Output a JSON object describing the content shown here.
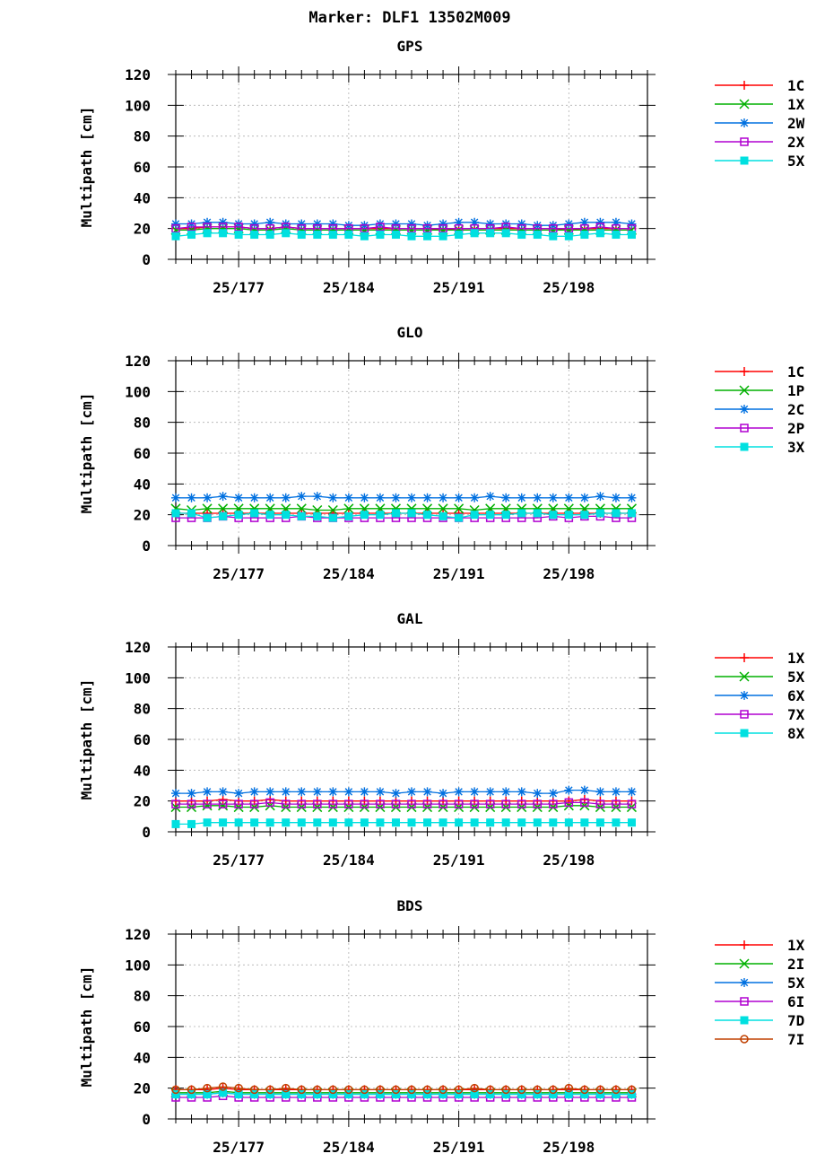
{
  "header": {
    "title": "Marker: DLF1 13502M009"
  },
  "chart_data": [
    {
      "type": "line",
      "title": "GPS",
      "ylabel": "Multipath [cm]",
      "ylim": [
        0,
        120
      ],
      "yticks": [
        0,
        20,
        40,
        60,
        80,
        100,
        120
      ],
      "xlim": [
        173,
        203
      ],
      "xticks": [
        177,
        184,
        191,
        198
      ],
      "xtick_labels": [
        "25/177",
        "25/184",
        "25/191",
        "25/198"
      ],
      "grid": true,
      "legend_position": "right",
      "x": [
        173,
        174,
        175,
        176,
        177,
        178,
        179,
        180,
        181,
        182,
        183,
        184,
        185,
        186,
        187,
        188,
        189,
        190,
        191,
        192,
        193,
        194,
        195,
        196,
        197,
        198,
        199,
        200,
        201,
        202
      ],
      "series": [
        {
          "name": "1C",
          "color": "#ff0000",
          "marker": "plus",
          "values": [
            20,
            20,
            21,
            21,
            21,
            20,
            20,
            21,
            20,
            20,
            20,
            20,
            20,
            20,
            20,
            20,
            20,
            19,
            20,
            20,
            20,
            20,
            20,
            20,
            20,
            19,
            20,
            20,
            20,
            20
          ]
        },
        {
          "name": "1X",
          "color": "#00b000",
          "marker": "x",
          "values": [
            19,
            19,
            20,
            20,
            20,
            19,
            19,
            20,
            19,
            19,
            19,
            19,
            19,
            19,
            19,
            19,
            19,
            19,
            19,
            19,
            19,
            19,
            19,
            19,
            19,
            19,
            19,
            19,
            19,
            19
          ]
        },
        {
          "name": "2W",
          "color": "#0070e0",
          "marker": "star",
          "values": [
            23,
            23,
            24,
            24,
            23,
            23,
            24,
            23,
            23,
            23,
            23,
            22,
            22,
            23,
            23,
            23,
            22,
            23,
            24,
            24,
            23,
            23,
            23,
            22,
            22,
            23,
            24,
            24,
            24,
            23
          ]
        },
        {
          "name": "2X",
          "color": "#b000d0",
          "marker": "square",
          "values": [
            20,
            21,
            21,
            21,
            21,
            20,
            20,
            21,
            20,
            20,
            20,
            20,
            20,
            21,
            20,
            20,
            20,
            20,
            20,
            20,
            20,
            21,
            20,
            20,
            20,
            20,
            20,
            21,
            20,
            20
          ]
        },
        {
          "name": "5X",
          "color": "#00e0e0",
          "marker": "filled-square",
          "values": [
            15,
            16,
            17,
            17,
            16,
            16,
            16,
            17,
            16,
            16,
            16,
            16,
            15,
            16,
            16,
            15,
            15,
            15,
            16,
            17,
            17,
            17,
            16,
            16,
            15,
            15,
            16,
            17,
            16,
            16
          ]
        }
      ]
    },
    {
      "type": "line",
      "title": "GLO",
      "ylabel": "Multipath [cm]",
      "ylim": [
        0,
        120
      ],
      "yticks": [
        0,
        20,
        40,
        60,
        80,
        100,
        120
      ],
      "xlim": [
        173,
        203
      ],
      "xticks": [
        177,
        184,
        191,
        198
      ],
      "xtick_labels": [
        "25/177",
        "25/184",
        "25/191",
        "25/198"
      ],
      "grid": true,
      "legend_position": "right",
      "x": [
        173,
        174,
        175,
        176,
        177,
        178,
        179,
        180,
        181,
        182,
        183,
        184,
        185,
        186,
        187,
        188,
        189,
        190,
        191,
        192,
        193,
        194,
        195,
        196,
        197,
        198,
        199,
        200,
        201,
        202
      ],
      "series": [
        {
          "name": "1C",
          "color": "#ff0000",
          "marker": "plus",
          "values": [
            21,
            21,
            21,
            21,
            21,
            21,
            21,
            21,
            21,
            21,
            21,
            21,
            21,
            21,
            21,
            21,
            21,
            21,
            21,
            21,
            21,
            21,
            21,
            21,
            21,
            21,
            21,
            21,
            21,
            21
          ]
        },
        {
          "name": "1P",
          "color": "#00b000",
          "marker": "x",
          "values": [
            24,
            23,
            24,
            24,
            24,
            24,
            24,
            24,
            24,
            23,
            23,
            24,
            24,
            24,
            24,
            24,
            24,
            24,
            24,
            23,
            24,
            24,
            24,
            24,
            24,
            24,
            24,
            24,
            24,
            24
          ]
        },
        {
          "name": "2C",
          "color": "#0070e0",
          "marker": "star",
          "values": [
            31,
            31,
            31,
            32,
            31,
            31,
            31,
            31,
            32,
            32,
            31,
            31,
            31,
            31,
            31,
            31,
            31,
            31,
            31,
            31,
            32,
            31,
            31,
            31,
            31,
            31,
            31,
            32,
            31,
            31
          ]
        },
        {
          "name": "2P",
          "color": "#b000d0",
          "marker": "square",
          "values": [
            18,
            18,
            18,
            19,
            18,
            18,
            18,
            18,
            19,
            18,
            18,
            18,
            18,
            18,
            18,
            18,
            18,
            18,
            18,
            18,
            18,
            18,
            18,
            18,
            19,
            18,
            19,
            19,
            18,
            18
          ]
        },
        {
          "name": "3X",
          "color": "#00e0e0",
          "marker": "filled-square",
          "values": [
            21,
            21,
            18,
            19,
            20,
            21,
            20,
            20,
            19,
            19,
            18,
            19,
            20,
            20,
            21,
            21,
            20,
            19,
            18,
            20,
            20,
            20,
            21,
            21,
            20,
            20,
            20,
            21,
            21,
            21
          ]
        }
      ]
    },
    {
      "type": "line",
      "title": "GAL",
      "ylabel": "Multipath [cm]",
      "ylim": [
        0,
        120
      ],
      "yticks": [
        0,
        20,
        40,
        60,
        80,
        100,
        120
      ],
      "xlim": [
        173,
        203
      ],
      "xticks": [
        177,
        184,
        191,
        198
      ],
      "xtick_labels": [
        "25/177",
        "25/184",
        "25/191",
        "25/198"
      ],
      "grid": true,
      "legend_position": "right",
      "x": [
        173,
        174,
        175,
        176,
        177,
        178,
        179,
        180,
        181,
        182,
        183,
        184,
        185,
        186,
        187,
        188,
        189,
        190,
        191,
        192,
        193,
        194,
        195,
        196,
        197,
        198,
        199,
        200,
        201,
        202
      ],
      "series": [
        {
          "name": "1X",
          "color": "#ff0000",
          "marker": "plus",
          "values": [
            20,
            20,
            20,
            21,
            20,
            20,
            21,
            20,
            20,
            20,
            20,
            20,
            20,
            20,
            20,
            20,
            20,
            20,
            20,
            20,
            20,
            20,
            20,
            20,
            20,
            20,
            21,
            20,
            20,
            20
          ]
        },
        {
          "name": "5X",
          "color": "#00b000",
          "marker": "x",
          "values": [
            16,
            16,
            17,
            17,
            16,
            16,
            17,
            16,
            16,
            16,
            16,
            16,
            16,
            16,
            16,
            16,
            16,
            16,
            16,
            16,
            16,
            16,
            16,
            16,
            16,
            17,
            17,
            16,
            16,
            16
          ]
        },
        {
          "name": "6X",
          "color": "#0070e0",
          "marker": "star",
          "values": [
            25,
            25,
            26,
            26,
            25,
            26,
            26,
            26,
            26,
            26,
            26,
            26,
            26,
            26,
            25,
            26,
            26,
            25,
            26,
            26,
            26,
            26,
            26,
            25,
            25,
            27,
            27,
            26,
            26,
            26
          ]
        },
        {
          "name": "7X",
          "color": "#b000d0",
          "marker": "square",
          "values": [
            18,
            18,
            18,
            18,
            18,
            18,
            19,
            18,
            18,
            18,
            18,
            18,
            18,
            18,
            18,
            18,
            18,
            18,
            18,
            18,
            18,
            18,
            18,
            18,
            18,
            19,
            19,
            18,
            18,
            18
          ]
        },
        {
          "name": "8X",
          "color": "#00e0e0",
          "marker": "filled-square",
          "values": [
            5,
            5,
            6,
            6,
            6,
            6,
            6,
            6,
            6,
            6,
            6,
            6,
            6,
            6,
            6,
            6,
            6,
            6,
            6,
            6,
            6,
            6,
            6,
            6,
            6,
            6,
            6,
            6,
            6,
            6
          ]
        }
      ]
    },
    {
      "type": "line",
      "title": "BDS",
      "ylabel": "Multipath [cm]",
      "ylim": [
        0,
        120
      ],
      "yticks": [
        0,
        20,
        40,
        60,
        80,
        100,
        120
      ],
      "xlim": [
        173,
        203
      ],
      "xticks": [
        177,
        184,
        191,
        198
      ],
      "xtick_labels": [
        "25/177",
        "25/184",
        "25/191",
        "25/198"
      ],
      "grid": true,
      "legend_position": "right",
      "x": [
        173,
        174,
        175,
        176,
        177,
        178,
        179,
        180,
        181,
        182,
        183,
        184,
        185,
        186,
        187,
        188,
        189,
        190,
        191,
        192,
        193,
        194,
        195,
        196,
        197,
        198,
        199,
        200,
        201,
        202
      ],
      "series": [
        {
          "name": "1X",
          "color": "#ff0000",
          "marker": "plus",
          "values": [
            19,
            19,
            19,
            20,
            19,
            19,
            19,
            19,
            19,
            19,
            19,
            19,
            19,
            19,
            19,
            19,
            19,
            19,
            19,
            19,
            19,
            19,
            19,
            19,
            19,
            19,
            19,
            19,
            19,
            19
          ]
        },
        {
          "name": "2I",
          "color": "#00b000",
          "marker": "x",
          "values": [
            17,
            17,
            17,
            18,
            17,
            17,
            17,
            17,
            17,
            17,
            17,
            17,
            17,
            17,
            17,
            17,
            17,
            17,
            17,
            17,
            17,
            17,
            17,
            17,
            17,
            17,
            17,
            17,
            17,
            17
          ]
        },
        {
          "name": "5X",
          "color": "#0070e0",
          "marker": "star",
          "values": [
            16,
            16,
            16,
            17,
            16,
            16,
            16,
            16,
            16,
            16,
            16,
            16,
            16,
            16,
            16,
            16,
            16,
            16,
            16,
            16,
            16,
            16,
            16,
            16,
            16,
            16,
            16,
            16,
            16,
            16
          ]
        },
        {
          "name": "6I",
          "color": "#b000d0",
          "marker": "square",
          "values": [
            14,
            14,
            14,
            15,
            14,
            14,
            14,
            14,
            14,
            14,
            14,
            14,
            14,
            14,
            14,
            14,
            14,
            14,
            14,
            14,
            14,
            14,
            14,
            14,
            14,
            14,
            14,
            14,
            14,
            14
          ]
        },
        {
          "name": "7D",
          "color": "#00e0e0",
          "marker": "filled-square",
          "values": [
            16,
            16,
            16,
            17,
            16,
            16,
            16,
            16,
            16,
            16,
            16,
            16,
            16,
            16,
            16,
            16,
            16,
            16,
            16,
            16,
            16,
            16,
            16,
            16,
            16,
            16,
            16,
            16,
            16,
            16
          ]
        },
        {
          "name": "7I",
          "color": "#c04000",
          "marker": "circle",
          "values": [
            19,
            19,
            20,
            21,
            20,
            19,
            19,
            20,
            19,
            19,
            19,
            19,
            19,
            19,
            19,
            19,
            19,
            19,
            19,
            20,
            19,
            19,
            19,
            19,
            19,
            20,
            19,
            19,
            19,
            19
          ]
        }
      ]
    }
  ]
}
